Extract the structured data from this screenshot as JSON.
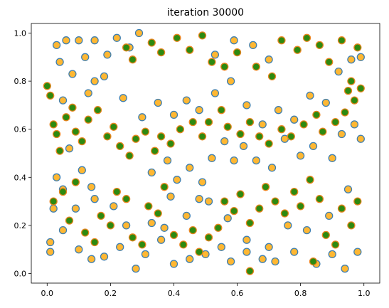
{
  "chart_data": {
    "type": "scatter",
    "title": "iteration 30000",
    "xlabel": "",
    "ylabel": "",
    "xlim": [
      -0.05,
      1.05
    ],
    "ylim": [
      -0.04,
      1.04
    ],
    "x_ticks": [
      0.0,
      0.2,
      0.4,
      0.6,
      0.8,
      1.0
    ],
    "y_ticks": [
      0.0,
      0.2,
      0.4,
      0.6,
      0.8,
      1.0
    ],
    "x_tick_labels": [
      "0.0",
      "0.2",
      "0.4",
      "0.6",
      "0.8",
      "1.0"
    ],
    "y_tick_labels": [
      "0.0",
      "0.2",
      "0.4",
      "0.6",
      "0.8",
      "1.0"
    ],
    "grid": false,
    "legend": "none",
    "series": [
      {
        "marker": "circle",
        "face_color": "#ffb732",
        "edge_color": "#3f7fb0",
        "approx_count": 300,
        "distribution": "roughly uniform in [0,1] x [0,1]",
        "points": [
          [
            0.01,
            0.09
          ],
          [
            0.02,
            0.27
          ],
          [
            0.03,
            0.95
          ],
          [
            0.04,
            0.88
          ],
          [
            0.05,
            0.35
          ],
          [
            0.06,
            0.97
          ],
          [
            0.07,
            0.52
          ],
          [
            0.08,
            0.83
          ],
          [
            0.1,
            0.97
          ],
          [
            0.12,
            0.9
          ],
          [
            0.15,
            0.97
          ],
          [
            0.19,
            0.91
          ],
          [
            0.22,
            0.98
          ],
          [
            0.26,
            0.94
          ],
          [
            0.29,
            1.0
          ],
          [
            0.24,
            0.73
          ],
          [
            0.15,
            0.8
          ],
          [
            0.18,
            0.82
          ],
          [
            0.13,
            0.75
          ],
          [
            0.05,
            0.72
          ],
          [
            0.03,
            0.4
          ],
          [
            0.11,
            0.43
          ],
          [
            0.14,
            0.36
          ],
          [
            0.09,
            0.27
          ],
          [
            0.15,
            0.31
          ],
          [
            0.21,
            0.28
          ],
          [
            0.25,
            0.2
          ],
          [
            0.33,
            0.21
          ],
          [
            0.37,
            0.19
          ],
          [
            0.39,
            0.32
          ],
          [
            0.44,
            0.24
          ],
          [
            0.48,
            0.31
          ],
          [
            0.51,
            0.3
          ],
          [
            0.57,
            0.23
          ],
          [
            0.63,
            0.14
          ],
          [
            0.7,
            0.11
          ],
          [
            0.76,
            0.2
          ],
          [
            0.82,
            0.18
          ],
          [
            0.89,
            0.24
          ],
          [
            0.95,
            0.35
          ],
          [
            0.01,
            0.13
          ],
          [
            0.05,
            0.18
          ],
          [
            0.1,
            0.1
          ],
          [
            0.14,
            0.06
          ],
          [
            0.18,
            0.07
          ],
          [
            0.23,
            0.11
          ],
          [
            0.28,
            0.02
          ],
          [
            0.31,
            0.08
          ],
          [
            0.36,
            0.14
          ],
          [
            0.4,
            0.04
          ],
          [
            0.45,
            0.06
          ],
          [
            0.5,
            0.08
          ],
          [
            0.55,
            0.11
          ],
          [
            0.58,
            0.05
          ],
          [
            0.63,
            0.09
          ],
          [
            0.68,
            0.06
          ],
          [
            0.72,
            0.05
          ],
          [
            0.78,
            0.09
          ],
          [
            0.85,
            0.04
          ],
          [
            0.9,
            0.08
          ],
          [
            0.94,
            0.02
          ],
          [
            0.98,
            0.09
          ],
          [
            0.33,
            0.42
          ],
          [
            0.38,
            0.47
          ],
          [
            0.41,
            0.39
          ],
          [
            0.45,
            0.44
          ],
          [
            0.49,
            0.38
          ],
          [
            0.52,
            0.48
          ],
          [
            0.56,
            0.55
          ],
          [
            0.59,
            0.47
          ],
          [
            0.62,
            0.53
          ],
          [
            0.66,
            0.47
          ],
          [
            0.71,
            0.44
          ],
          [
            0.75,
            0.56
          ],
          [
            0.8,
            0.49
          ],
          [
            0.84,
            0.53
          ],
          [
            0.9,
            0.48
          ],
          [
            0.93,
            0.58
          ],
          [
            0.97,
            0.62
          ],
          [
            0.99,
            0.56
          ],
          [
            0.3,
            0.65
          ],
          [
            0.35,
            0.71
          ],
          [
            0.4,
            0.66
          ],
          [
            0.44,
            0.72
          ],
          [
            0.48,
            0.68
          ],
          [
            0.53,
            0.75
          ],
          [
            0.58,
            0.8
          ],
          [
            0.63,
            0.7
          ],
          [
            0.68,
            0.62
          ],
          [
            0.73,
            0.68
          ],
          [
            0.78,
            0.64
          ],
          [
            0.83,
            0.74
          ],
          [
            0.88,
            0.71
          ],
          [
            0.92,
            0.84
          ],
          [
            0.96,
            0.89
          ],
          [
            0.99,
            0.9
          ],
          [
            0.7,
            0.89
          ],
          [
            0.65,
            0.95
          ],
          [
            0.59,
            0.97
          ],
          [
            0.53,
            0.91
          ]
        ]
      },
      {
        "marker": "circle",
        "face_color": "#2d8a10",
        "edge_color": "#e9851f",
        "approx_count": 300,
        "distribution": "roughly uniform in [0,1] x [0,1]",
        "points": [
          [
            0.0,
            0.78
          ],
          [
            0.01,
            0.74
          ],
          [
            0.02,
            0.62
          ],
          [
            0.03,
            0.58
          ],
          [
            0.04,
            0.51
          ],
          [
            0.06,
            0.65
          ],
          [
            0.08,
            0.69
          ],
          [
            0.09,
            0.59
          ],
          [
            0.11,
            0.55
          ],
          [
            0.13,
            0.64
          ],
          [
            0.16,
            0.68
          ],
          [
            0.19,
            0.57
          ],
          [
            0.21,
            0.61
          ],
          [
            0.23,
            0.53
          ],
          [
            0.26,
            0.49
          ],
          [
            0.28,
            0.56
          ],
          [
            0.31,
            0.59
          ],
          [
            0.34,
            0.51
          ],
          [
            0.36,
            0.57
          ],
          [
            0.39,
            0.54
          ],
          [
            0.42,
            0.6
          ],
          [
            0.46,
            0.63
          ],
          [
            0.49,
            0.57
          ],
          [
            0.51,
            0.63
          ],
          [
            0.55,
            0.68
          ],
          [
            0.57,
            0.61
          ],
          [
            0.61,
            0.58
          ],
          [
            0.64,
            0.63
          ],
          [
            0.67,
            0.57
          ],
          [
            0.7,
            0.54
          ],
          [
            0.74,
            0.6
          ],
          [
            0.77,
            0.57
          ],
          [
            0.81,
            0.62
          ],
          [
            0.85,
            0.66
          ],
          [
            0.87,
            0.59
          ],
          [
            0.91,
            0.63
          ],
          [
            0.94,
            0.67
          ],
          [
            0.97,
            0.72
          ],
          [
            0.99,
            0.77
          ],
          [
            0.96,
            0.8
          ],
          [
            0.25,
            0.94
          ],
          [
            0.27,
            0.89
          ],
          [
            0.33,
            0.96
          ],
          [
            0.36,
            0.92
          ],
          [
            0.41,
            0.98
          ],
          [
            0.45,
            0.93
          ],
          [
            0.49,
            0.99
          ],
          [
            0.52,
            0.88
          ],
          [
            0.56,
            0.86
          ],
          [
            0.6,
            0.92
          ],
          [
            0.66,
            0.86
          ],
          [
            0.71,
            0.82
          ],
          [
            0.74,
            0.97
          ],
          [
            0.79,
            0.93
          ],
          [
            0.82,
            0.98
          ],
          [
            0.86,
            0.95
          ],
          [
            0.89,
            0.88
          ],
          [
            0.93,
            0.97
          ],
          [
            0.98,
            0.94
          ],
          [
            0.95,
            0.76
          ],
          [
            0.02,
            0.3
          ],
          [
            0.05,
            0.34
          ],
          [
            0.07,
            0.22
          ],
          [
            0.09,
            0.38
          ],
          [
            0.12,
            0.17
          ],
          [
            0.15,
            0.13
          ],
          [
            0.17,
            0.24
          ],
          [
            0.2,
            0.2
          ],
          [
            0.22,
            0.34
          ],
          [
            0.25,
            0.31
          ],
          [
            0.27,
            0.15
          ],
          [
            0.3,
            0.12
          ],
          [
            0.32,
            0.28
          ],
          [
            0.35,
            0.25
          ],
          [
            0.37,
            0.36
          ],
          [
            0.4,
            0.16
          ],
          [
            0.43,
            0.12
          ],
          [
            0.46,
            0.18
          ],
          [
            0.48,
            0.09
          ],
          [
            0.51,
            0.15
          ],
          [
            0.54,
            0.19
          ],
          [
            0.56,
            0.3
          ],
          [
            0.59,
            0.26
          ],
          [
            0.61,
            0.33
          ],
          [
            0.64,
            0.21
          ],
          [
            0.67,
            0.27
          ],
          [
            0.69,
            0.36
          ],
          [
            0.72,
            0.3
          ],
          [
            0.75,
            0.25
          ],
          [
            0.78,
            0.34
          ],
          [
            0.8,
            0.28
          ],
          [
            0.83,
            0.39
          ],
          [
            0.86,
            0.31
          ],
          [
            0.88,
            0.16
          ],
          [
            0.91,
            0.12
          ],
          [
            0.93,
            0.27
          ],
          [
            0.96,
            0.2
          ],
          [
            0.98,
            0.3
          ],
          [
            0.84,
            0.05
          ],
          [
            0.64,
            0.01
          ]
        ]
      }
    ]
  }
}
